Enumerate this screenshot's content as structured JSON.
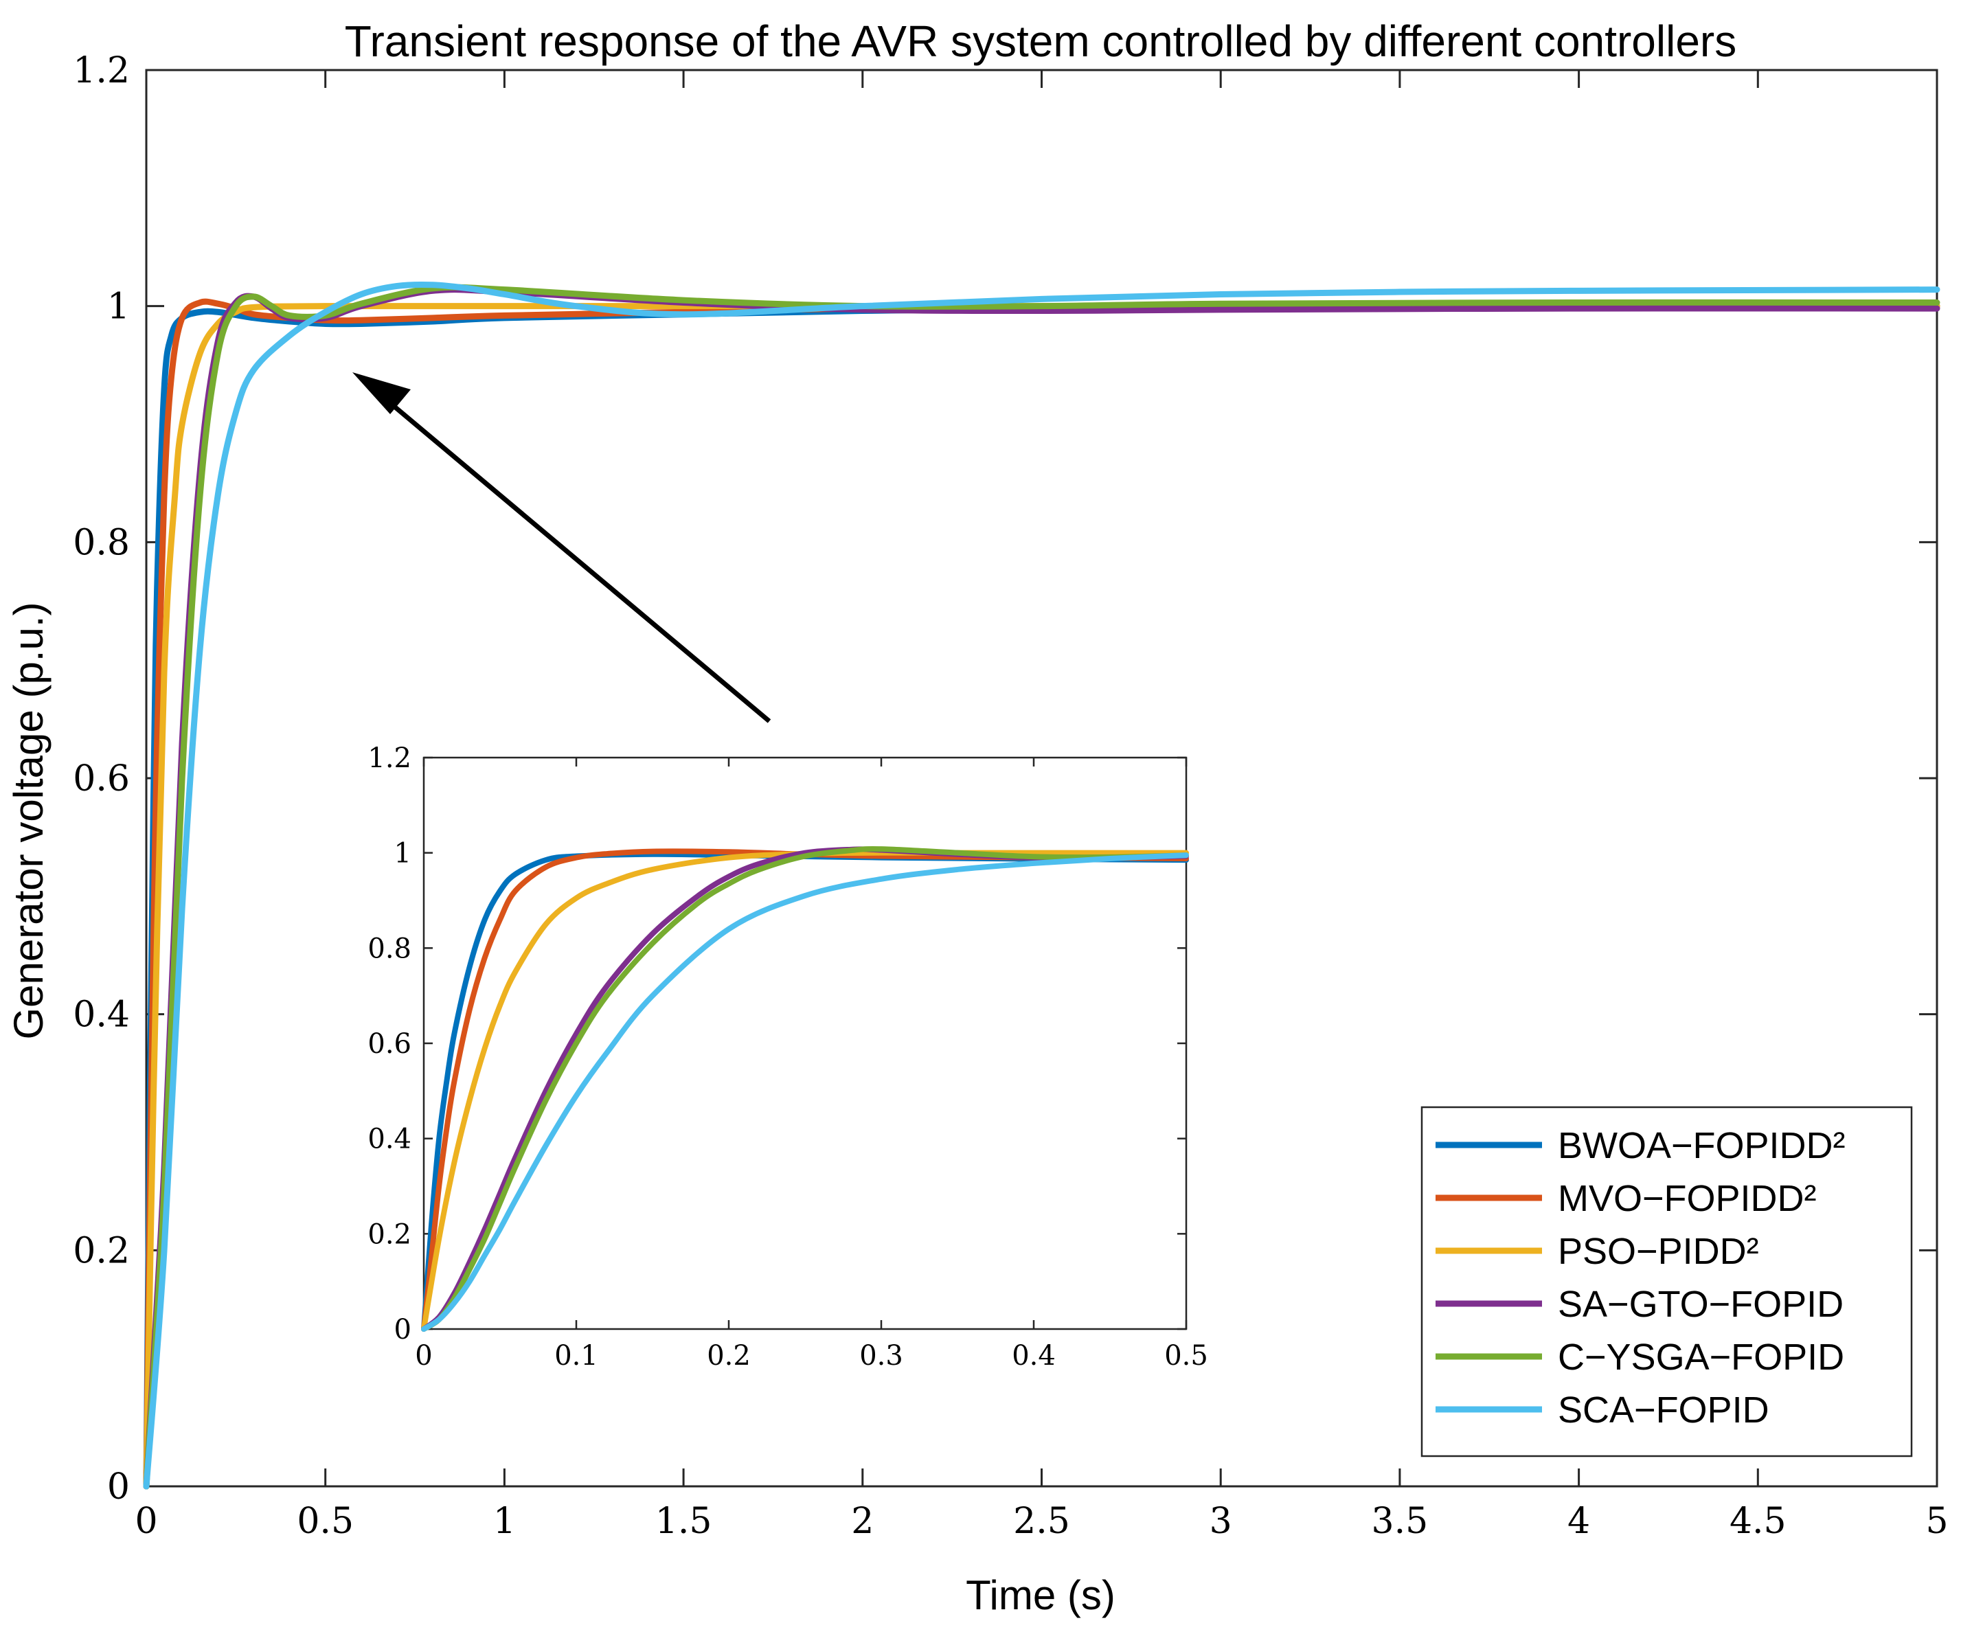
{
  "chart_data": [
    {
      "type": "line",
      "role": "main",
      "title": "Transient response of the AVR system controlled by different controllers",
      "xlabel": "Time (s)",
      "ylabel": "Generator voltage (p.u.)",
      "xlim": [
        0,
        5
      ],
      "ylim": [
        0,
        1.2
      ],
      "xticks": [
        "0",
        "0.5",
        "1",
        "1.5",
        "2",
        "2.5",
        "3",
        "3.5",
        "4",
        "4.5",
        "5"
      ],
      "yticks": [
        "0",
        "0.2",
        "0.4",
        "0.6",
        "0.8",
        "1",
        "1.2"
      ],
      "grid": false,
      "legend_position": "bottom-right",
      "series": [
        {
          "name": "BWOA−FOPIDD²",
          "color": "#0072BD",
          "x": [
            0,
            0.01,
            0.02,
            0.03,
            0.05,
            0.07,
            0.1,
            0.15,
            0.2,
            0.3,
            0.4,
            0.5,
            0.6,
            0.8,
            1.0,
            1.5,
            2.0,
            2.5,
            3.0,
            4.0,
            5.0
          ],
          "y": [
            0,
            0.33,
            0.58,
            0.76,
            0.93,
            0.975,
            0.99,
            0.995,
            0.995,
            0.99,
            0.987,
            0.985,
            0.985,
            0.987,
            0.99,
            0.993,
            0.996,
            0.998,
            0.999,
            1.0,
            1.0
          ]
        },
        {
          "name": "MVO−FOPIDD²",
          "color": "#D95319",
          "x": [
            0,
            0.01,
            0.02,
            0.03,
            0.05,
            0.07,
            0.1,
            0.15,
            0.2,
            0.25,
            0.3,
            0.4,
            0.5,
            0.6,
            0.8,
            1.0,
            1.5,
            2.0,
            3.0,
            4.0,
            5.0
          ],
          "y": [
            0,
            0.25,
            0.46,
            0.63,
            0.84,
            0.94,
            0.99,
            1.003,
            1.002,
            0.998,
            0.993,
            0.99,
            0.988,
            0.988,
            0.99,
            0.992,
            0.995,
            0.998,
            1.0,
            1.0,
            1.0
          ]
        },
        {
          "name": "PSO−PIDD²",
          "color": "#EDB120",
          "x": [
            0,
            0.02,
            0.05,
            0.08,
            0.1,
            0.15,
            0.2,
            0.25,
            0.3,
            0.5,
            1.0,
            2.0,
            3.0,
            4.0,
            5.0
          ],
          "y": [
            0,
            0.33,
            0.69,
            0.84,
            0.9,
            0.96,
            0.985,
            0.995,
            0.999,
            1.0,
            1.0,
            1.0,
            1.0,
            1.0,
            1.0
          ]
        },
        {
          "name": "SA−GTO−FOPID",
          "color": "#7E2F8E",
          "x": [
            0,
            0.05,
            0.1,
            0.15,
            0.2,
            0.25,
            0.3,
            0.35,
            0.4,
            0.5,
            0.6,
            0.8,
            1.0,
            1.5,
            2.0,
            2.5,
            3.0,
            4.0,
            5.0
          ],
          "y": [
            0,
            0.27,
            0.63,
            0.86,
            0.97,
            1.003,
            1.008,
            0.998,
            0.99,
            0.99,
            1.0,
            1.013,
            1.012,
            1.003,
            0.997,
            0.996,
            0.997,
            0.998,
            0.998
          ]
        },
        {
          "name": "C−YSGA−FOPID",
          "color": "#77AC30",
          "x": [
            0,
            0.05,
            0.1,
            0.15,
            0.2,
            0.25,
            0.3,
            0.35,
            0.4,
            0.5,
            0.6,
            0.8,
            1.0,
            1.5,
            2.0,
            2.5,
            3.0,
            4.0,
            5.0
          ],
          "y": [
            0,
            0.25,
            0.6,
            0.84,
            0.96,
            1.0,
            1.008,
            1.0,
            0.992,
            0.992,
            1.002,
            1.015,
            1.014,
            1.005,
            1.0,
            1.0,
            1.002,
            1.003,
            1.003
          ]
        },
        {
          "name": "SCA−FOPID",
          "color": "#4DBEEE",
          "x": [
            0,
            0.05,
            0.1,
            0.15,
            0.2,
            0.25,
            0.3,
            0.4,
            0.5,
            0.6,
            0.7,
            0.8,
            0.9,
            1.0,
            1.2,
            1.5,
            2.0,
            2.5,
            3.0,
            3.5,
            4.0,
            5.0
          ],
          "y": [
            0,
            0.2,
            0.49,
            0.71,
            0.84,
            0.91,
            0.946,
            0.975,
            0.995,
            1.01,
            1.017,
            1.018,
            1.015,
            1.01,
            1.0,
            0.993,
            1.0,
            1.006,
            1.01,
            1.012,
            1.013,
            1.014
          ]
        }
      ]
    },
    {
      "type": "line",
      "role": "inset",
      "xlim": [
        0,
        0.5
      ],
      "ylim": [
        0,
        1.2
      ],
      "xticks": [
        "0",
        "0.1",
        "0.2",
        "0.3",
        "0.4",
        "0.5"
      ],
      "yticks": [
        "0",
        "0.2",
        "0.4",
        "0.6",
        "0.8",
        "1",
        "1.2"
      ],
      "series": [
        {
          "name": "BWOA−FOPIDD²",
          "color": "#0072BD",
          "x": [
            0,
            0.005,
            0.01,
            0.015,
            0.02,
            0.03,
            0.04,
            0.05,
            0.06,
            0.08,
            0.1,
            0.15,
            0.2,
            0.3,
            0.4,
            0.5
          ],
          "y": [
            0,
            0.22,
            0.4,
            0.52,
            0.62,
            0.76,
            0.86,
            0.92,
            0.955,
            0.985,
            0.993,
            0.997,
            0.995,
            0.99,
            0.987,
            0.985
          ]
        },
        {
          "name": "MVO−FOPIDD²",
          "color": "#D95319",
          "x": [
            0,
            0.005,
            0.01,
            0.015,
            0.02,
            0.03,
            0.04,
            0.05,
            0.06,
            0.08,
            0.1,
            0.12,
            0.15,
            0.2,
            0.25,
            0.3,
            0.4,
            0.5
          ],
          "y": [
            0,
            0.15,
            0.3,
            0.42,
            0.52,
            0.67,
            0.78,
            0.86,
            0.92,
            0.97,
            0.99,
            0.998,
            1.003,
            1.002,
            0.997,
            0.993,
            0.99,
            0.988
          ]
        },
        {
          "name": "PSO−PIDD²",
          "color": "#EDB120",
          "x": [
            0,
            0.01,
            0.02,
            0.03,
            0.04,
            0.05,
            0.06,
            0.08,
            0.1,
            0.12,
            0.15,
            0.2,
            0.25,
            0.3,
            0.4,
            0.5
          ],
          "y": [
            0,
            0.19,
            0.35,
            0.48,
            0.59,
            0.68,
            0.75,
            0.85,
            0.905,
            0.935,
            0.965,
            0.99,
            0.998,
            1.0,
            1.0,
            1.0
          ]
        },
        {
          "name": "SA−GTO−FOPID",
          "color": "#7E2F8E",
          "x": [
            0,
            0.01,
            0.02,
            0.03,
            0.04,
            0.05,
            0.06,
            0.08,
            0.1,
            0.12,
            0.15,
            0.18,
            0.2,
            0.22,
            0.25,
            0.28,
            0.3,
            0.35,
            0.4,
            0.45,
            0.5
          ],
          "y": [
            0,
            0.025,
            0.075,
            0.14,
            0.21,
            0.285,
            0.36,
            0.5,
            0.62,
            0.72,
            0.83,
            0.91,
            0.95,
            0.977,
            1.0,
            1.007,
            1.006,
            0.997,
            0.99,
            0.99,
            0.993
          ]
        },
        {
          "name": "C−YSGA−FOPID",
          "color": "#77AC30",
          "x": [
            0,
            0.01,
            0.02,
            0.03,
            0.04,
            0.05,
            0.06,
            0.08,
            0.1,
            0.12,
            0.15,
            0.18,
            0.2,
            0.22,
            0.25,
            0.28,
            0.3,
            0.35,
            0.4,
            0.45,
            0.5
          ],
          "y": [
            0,
            0.02,
            0.065,
            0.125,
            0.19,
            0.265,
            0.34,
            0.48,
            0.6,
            0.7,
            0.81,
            0.895,
            0.935,
            0.965,
            0.993,
            1.005,
            1.008,
            1.0,
            0.992,
            0.991,
            0.995
          ]
        },
        {
          "name": "SCA−FOPID",
          "color": "#4DBEEE",
          "x": [
            0,
            0.01,
            0.02,
            0.03,
            0.04,
            0.05,
            0.06,
            0.08,
            0.1,
            0.12,
            0.15,
            0.2,
            0.25,
            0.3,
            0.35,
            0.4,
            0.45,
            0.5
          ],
          "y": [
            0,
            0.02,
            0.055,
            0.1,
            0.155,
            0.21,
            0.27,
            0.385,
            0.49,
            0.58,
            0.7,
            0.84,
            0.91,
            0.945,
            0.965,
            0.978,
            0.988,
            0.995
          ]
        }
      ]
    }
  ]
}
